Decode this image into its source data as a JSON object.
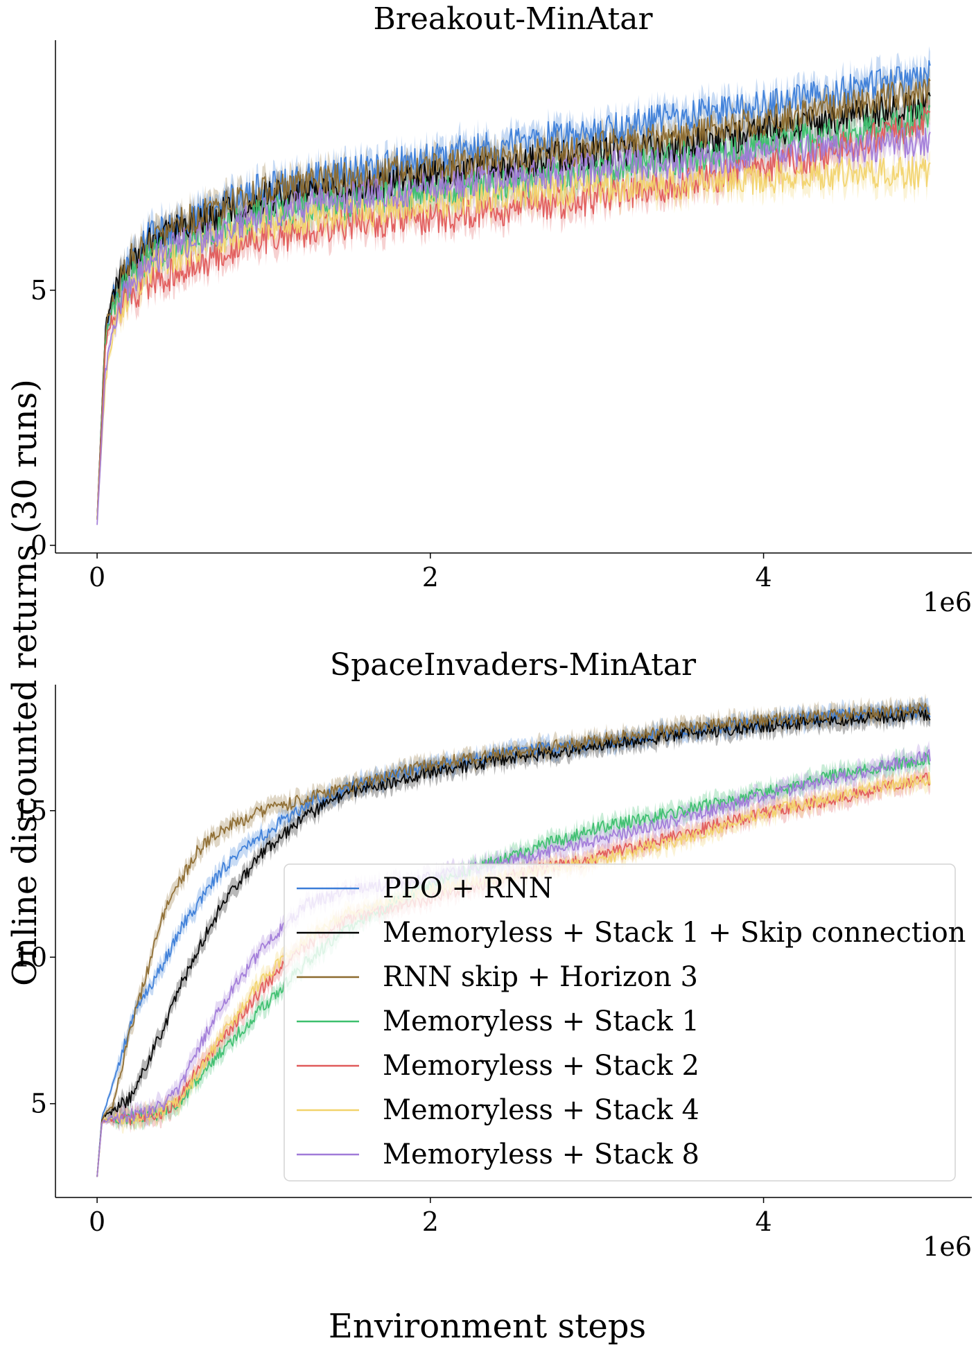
{
  "figure": {
    "shared_ylabel": "Online discounted returns (30 runs)",
    "shared_xlabel": "Environment steps",
    "x_offset_label": "1e6"
  },
  "legend": [
    {
      "name": "PPO + RNN",
      "color": "#3b7dd8"
    },
    {
      "name": "Memoryless + Stack 1 + Skip connection",
      "color": "#000000"
    },
    {
      "name": "RNN skip + Horizon 3",
      "color": "#8c6a2e"
    },
    {
      "name": "Memoryless + Stack 1",
      "color": "#3cbf6e"
    },
    {
      "name": "Memoryless + Stack 2",
      "color": "#e05a5a"
    },
    {
      "name": "Memoryless + Stack 4",
      "color": "#f2d36b"
    },
    {
      "name": "Memoryless + Stack 8",
      "color": "#a07ad8"
    }
  ],
  "chart_data": [
    {
      "type": "line",
      "title": "Breakout-MinAtar",
      "xlabel": "",
      "ylabel": "",
      "xlim": [
        -0.25,
        5.25
      ],
      "ylim": [
        -0.15,
        9.9
      ],
      "xticks": [
        0,
        2,
        4
      ],
      "xtick_labels": [
        "0",
        "2",
        "4"
      ],
      "yticks": [
        0,
        5
      ],
      "ytick_labels": [
        "0",
        "5"
      ],
      "grid": false,
      "shaded_band": true,
      "x": [
        0,
        0.05,
        0.1,
        0.2,
        0.3,
        0.5,
        0.75,
        1.0,
        1.5,
        2.0,
        2.5,
        3.0,
        3.5,
        4.0,
        4.5,
        5.0
      ],
      "series": [
        {
          "name": "PPO + RNN",
          "values": [
            0.5,
            4.2,
            4.9,
            5.6,
            6.0,
            6.3,
            6.7,
            7.0,
            7.3,
            7.6,
            7.9,
            8.1,
            8.4,
            8.6,
            8.9,
            9.2
          ]
        },
        {
          "name": "Memoryless + Stack 1 + Skip connection",
          "values": [
            0.5,
            4.3,
            5.0,
            5.5,
            5.9,
            6.2,
            6.5,
            6.8,
            7.0,
            7.2,
            7.5,
            7.7,
            7.8,
            8.1,
            8.4,
            8.6
          ]
        },
        {
          "name": "RNN skip + Horizon 3",
          "values": [
            0.5,
            4.2,
            4.9,
            5.6,
            5.9,
            6.3,
            6.6,
            6.9,
            7.2,
            7.4,
            7.6,
            7.8,
            8.0,
            8.3,
            8.6,
            8.9
          ]
        },
        {
          "name": "Memoryless + Stack 1",
          "values": [
            0.5,
            4.0,
            4.7,
            5.2,
            5.6,
            5.9,
            6.2,
            6.5,
            6.7,
            6.9,
            7.1,
            7.3,
            7.6,
            7.8,
            8.1,
            8.4
          ]
        },
        {
          "name": "Memoryless + Stack 2",
          "values": [
            0.5,
            3.9,
            4.6,
            4.9,
            5.1,
            5.4,
            5.7,
            6.0,
            6.3,
            6.4,
            6.6,
            6.8,
            7.1,
            7.4,
            7.8,
            8.3
          ]
        },
        {
          "name": "Memoryless + Stack 4",
          "values": [
            0.5,
            3.2,
            4.3,
            5.0,
            5.4,
            5.7,
            6.0,
            6.3,
            6.5,
            6.7,
            6.9,
            7.0,
            7.1,
            7.2,
            7.3,
            7.3
          ]
        },
        {
          "name": "Memoryless + Stack 8",
          "values": [
            0.4,
            3.4,
            4.4,
            5.2,
            5.5,
            5.9,
            6.2,
            6.5,
            6.8,
            7.0,
            7.2,
            7.4,
            7.5,
            7.7,
            7.8,
            7.9
          ]
        }
      ]
    },
    {
      "type": "line",
      "title": "SpaceInvaders-MinAtar",
      "xlabel": "",
      "ylabel": "",
      "xlim": [
        -0.25,
        5.25
      ],
      "ylim": [
        1.8,
        19.3
      ],
      "xticks": [
        0,
        2,
        4
      ],
      "xtick_labels": [
        "0",
        "2",
        "4"
      ],
      "yticks": [
        5,
        10,
        15
      ],
      "ytick_labels": [
        "5",
        "10",
        "15"
      ],
      "grid": false,
      "shaded_band": true,
      "legend_position": "lower-right",
      "x": [
        0,
        0.03,
        0.1,
        0.2,
        0.3,
        0.4,
        0.5,
        0.6,
        0.75,
        1.0,
        1.25,
        1.5,
        2.0,
        2.5,
        3.0,
        3.5,
        4.0,
        4.5,
        5.0
      ],
      "series": [
        {
          "name": "PPO + RNN",
          "values": [
            2.5,
            4.6,
            5.7,
            7.8,
            8.8,
            9.8,
            11.0,
            11.8,
            13.0,
            14.2,
            15.2,
            15.8,
            16.5,
            17.0,
            17.3,
            17.7,
            18.0,
            18.3,
            18.4
          ]
        },
        {
          "name": "Memoryless + Stack 1 + Skip connection",
          "values": [
            2.5,
            4.5,
            4.8,
            5.2,
            6.4,
            7.6,
            9.0,
            10.2,
            11.8,
            13.6,
            14.8,
            15.6,
            16.3,
            16.8,
            17.2,
            17.6,
            17.9,
            18.1,
            18.3
          ]
        },
        {
          "name": "RNN skip + Horizon 3",
          "values": [
            2.5,
            4.5,
            5.0,
            7.5,
            9.5,
            11.5,
            12.6,
            13.6,
            14.4,
            15.0,
            15.4,
            15.8,
            16.6,
            17.0,
            17.4,
            17.8,
            18.1,
            18.3,
            18.5
          ]
        },
        {
          "name": "Memoryless + Stack 1",
          "values": [
            2.5,
            4.4,
            4.5,
            4.5,
            4.6,
            4.7,
            5.0,
            5.8,
            6.8,
            8.3,
            9.8,
            11.0,
            12.5,
            13.5,
            14.4,
            15.0,
            15.6,
            16.3,
            16.8
          ]
        },
        {
          "name": "Memoryless + Stack 2",
          "values": [
            2.5,
            4.4,
            4.5,
            4.5,
            4.6,
            4.7,
            5.2,
            6.2,
            7.2,
            9.0,
            10.4,
            11.3,
            12.0,
            12.8,
            13.4,
            14.2,
            14.9,
            15.5,
            16.1
          ]
        },
        {
          "name": "Memoryless + Stack 4",
          "values": [
            2.5,
            4.4,
            4.5,
            4.5,
            4.6,
            4.8,
            5.1,
            6.0,
            7.3,
            9.3,
            10.6,
            11.5,
            12.3,
            12.8,
            13.3,
            14.0,
            14.9,
            15.6,
            16.1
          ]
        },
        {
          "name": "Memoryless + Stack 8",
          "values": [
            2.5,
            4.4,
            4.5,
            4.6,
            4.7,
            5.0,
            5.6,
            6.8,
            8.4,
            10.4,
            11.8,
            12.3,
            12.7,
            13.3,
            14.0,
            14.7,
            15.5,
            16.2,
            16.9
          ]
        }
      ]
    }
  ]
}
